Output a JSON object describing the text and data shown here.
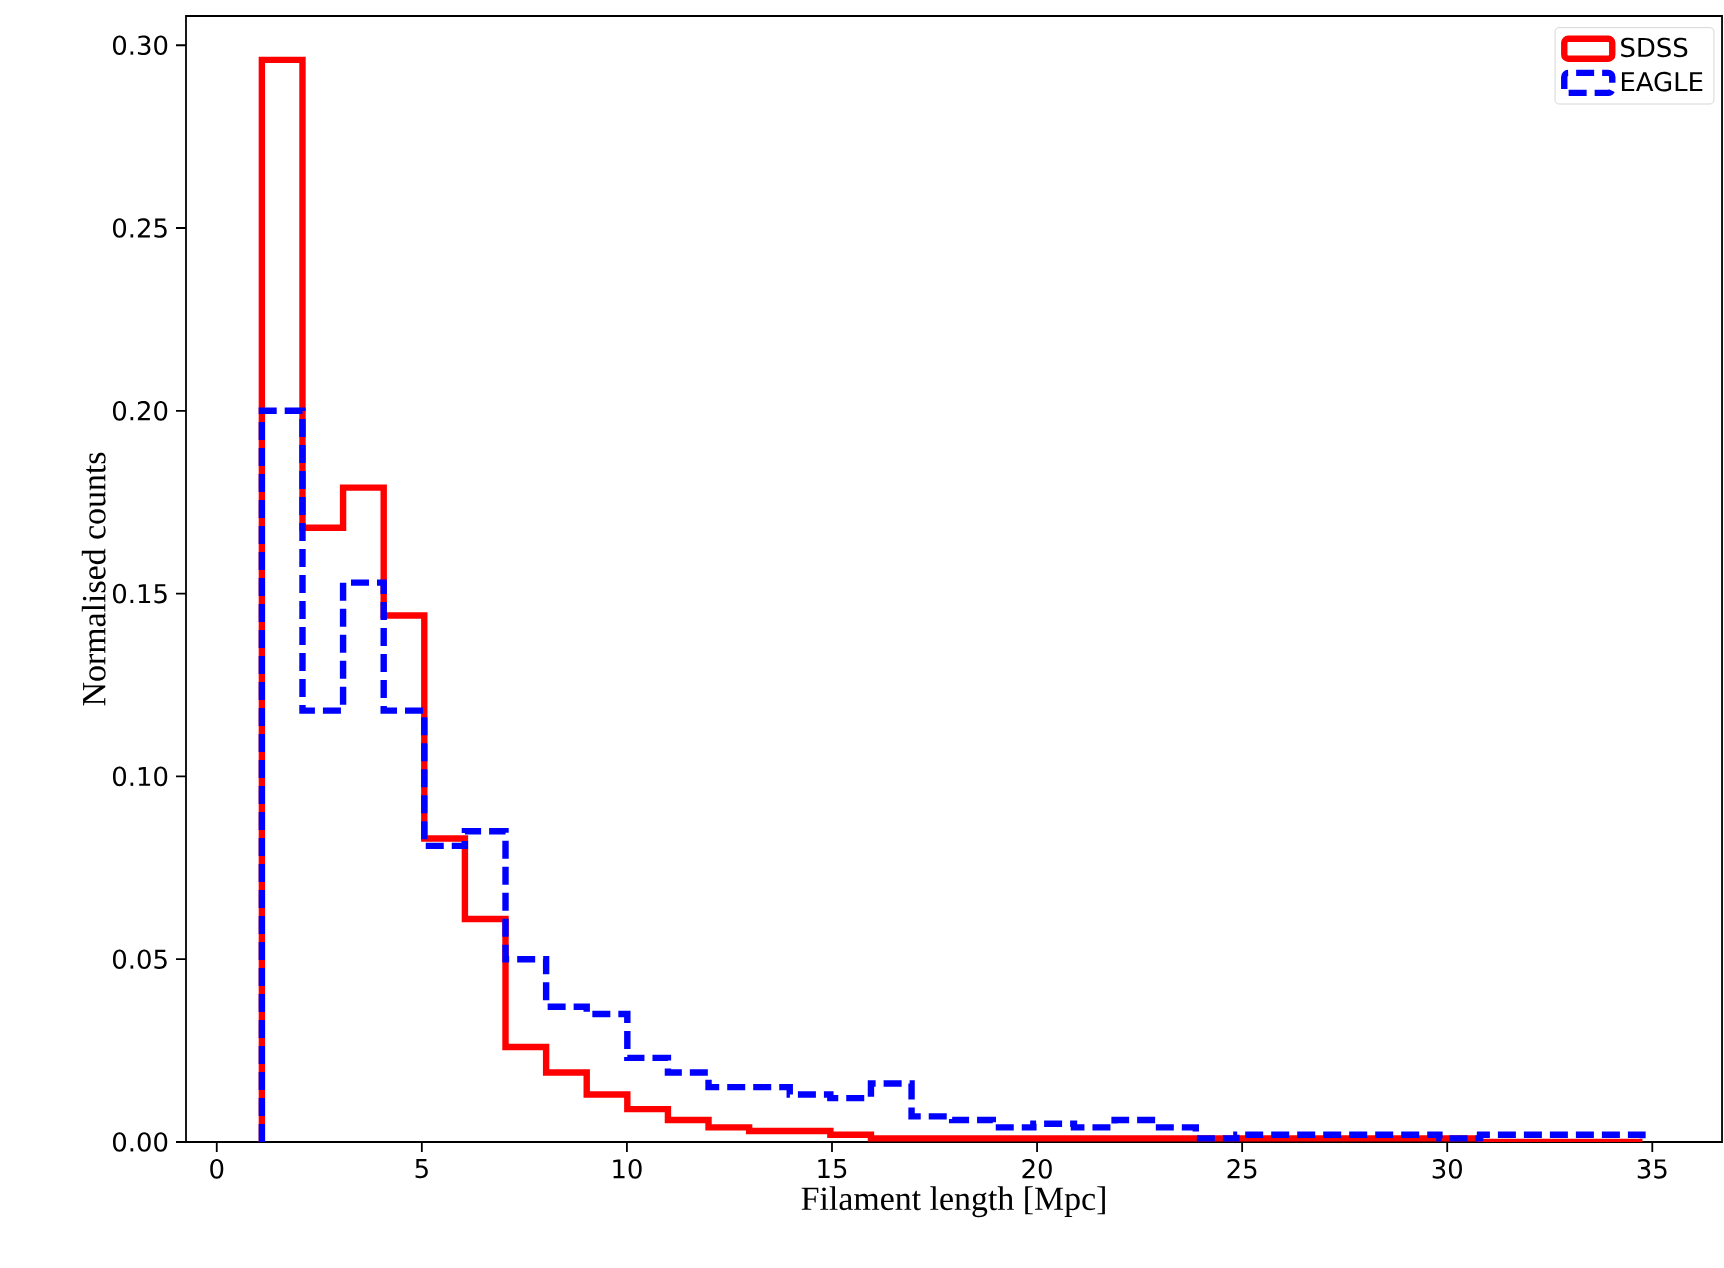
{
  "chart_data": {
    "type": "histogram",
    "xlabel": "Filament length [Mpc]",
    "ylabel": "Normalised counts",
    "xlim": [
      -0.75,
      36.7
    ],
    "ylim": [
      0,
      0.308
    ],
    "xticks": [
      0,
      5,
      10,
      15,
      20,
      25,
      30,
      35
    ],
    "yticks": [
      {
        "value": 0,
        "label": "0.00"
      },
      {
        "value": 0.05,
        "label": "0.05"
      },
      {
        "value": 0.1,
        "label": "0.10"
      },
      {
        "value": 0.15,
        "label": "0.15"
      },
      {
        "value": 0.2,
        "label": "0.20"
      },
      {
        "value": 0.25,
        "label": "0.25"
      },
      {
        "value": 0.3,
        "label": "0.30"
      }
    ],
    "legend": "top right",
    "grid": false,
    "bins": [
      1.1,
      2.09,
      3.08,
      4.07,
      5.06,
      6.05,
      7.04,
      8.03,
      9.02,
      10.01,
      11.0,
      11.99,
      12.98,
      13.97,
      14.96,
      15.95,
      16.94,
      17.93,
      18.92,
      19.91,
      20.9,
      21.89,
      22.88,
      23.87,
      24.86,
      25.85,
      26.84,
      27.83,
      28.82,
      29.81,
      30.8,
      31.79,
      32.78,
      33.77,
      34.76
    ],
    "series": [
      {
        "name": "SDSS",
        "color": "#ff0000",
        "line_style": "solid",
        "values": [
          0.296,
          0.168,
          0.179,
          0.144,
          0.083,
          0.061,
          0.026,
          0.019,
          0.013,
          0.009,
          0.006,
          0.004,
          0.003,
          0.003,
          0.002,
          0.001,
          0.001,
          0.001,
          0.001,
          0.001,
          0.001,
          0.001,
          0.001,
          0.001,
          0.001,
          0.001,
          0.001,
          0.001,
          0.001,
          0.001,
          0,
          0,
          0,
          0
        ]
      },
      {
        "name": "EAGLE",
        "color": "#0000ff",
        "line_style": "dashed",
        "values": [
          0.2,
          0.118,
          0.153,
          0.118,
          0.081,
          0.085,
          0.05,
          0.037,
          0.035,
          0.023,
          0.019,
          0.015,
          0.015,
          0.013,
          0.012,
          0.016,
          0.007,
          0.006,
          0.004,
          0.005,
          0.004,
          0.006,
          0.004,
          0.001,
          0.002,
          0.002,
          0.002,
          0.002,
          0.002,
          0.001,
          0.002,
          0.002,
          0.002,
          0.002
        ]
      }
    ]
  }
}
